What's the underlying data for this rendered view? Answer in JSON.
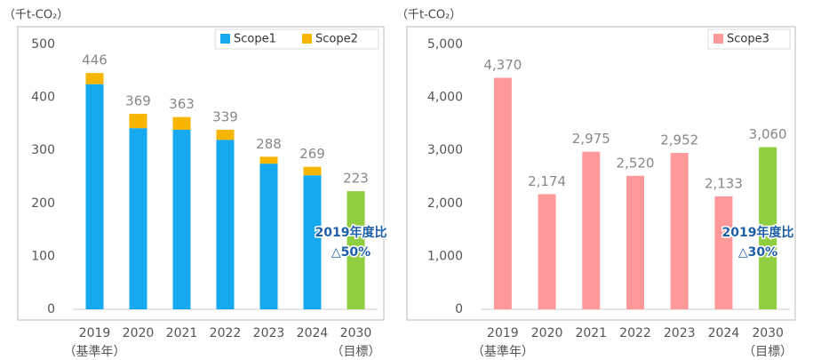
{
  "chart_data": [
    {
      "type": "bar",
      "stacked": true,
      "unit_label": "（千t-CO₂）",
      "categories": [
        "2019",
        "2020",
        "2021",
        "2022",
        "2023",
        "2024",
        "2030"
      ],
      "category_sublabels": [
        "（基準年）",
        null,
        null,
        null,
        null,
        null,
        "（目標）"
      ],
      "series": [
        {
          "name": "Scope1",
          "color": "#17a9ee",
          "values": [
            425,
            342,
            339,
            320,
            275,
            253,
            null
          ]
        },
        {
          "name": "Scope2",
          "color": "#f7b500",
          "values": [
            21,
            27,
            24,
            19,
            13,
            16,
            null
          ]
        }
      ],
      "totals": [
        446,
        369,
        363,
        339,
        288,
        269,
        null
      ],
      "target": {
        "color": "#8fce3e",
        "values": [
          null,
          null,
          null,
          null,
          null,
          null,
          223
        ]
      },
      "ylim": [
        0,
        500
      ],
      "yticks": [
        0,
        100,
        200,
        300,
        400,
        500
      ],
      "legend": "top-right",
      "annotations": [
        "2019年度比",
        "△50%"
      ]
    },
    {
      "type": "bar",
      "stacked": false,
      "unit_label": "（千t-CO₂）",
      "categories": [
        "2019",
        "2020",
        "2021",
        "2022",
        "2023",
        "2024",
        "2030"
      ],
      "category_sublabels": [
        "（基準年）",
        null,
        null,
        null,
        null,
        null,
        "（目標）"
      ],
      "series": [
        {
          "name": "Scope3",
          "color": "#ff9999",
          "values": [
            4370,
            2174,
            2975,
            2520,
            2952,
            2133,
            null
          ],
          "value_labels": [
            "4,370",
            "2,174",
            "2,975",
            "2,520",
            "2,952",
            "2,133",
            null
          ]
        }
      ],
      "target": {
        "color": "#8fce3e",
        "values": [
          null,
          null,
          null,
          null,
          null,
          null,
          3060
        ],
        "value_labels": [
          null,
          null,
          null,
          null,
          null,
          null,
          "3,060"
        ]
      },
      "ylim": [
        0,
        5000
      ],
      "yticks": [
        0,
        {
          "value": 1000,
          "label": "1,000"
        },
        {
          "value": 2000,
          "label": "2,000"
        },
        {
          "value": 3000,
          "label": "3,000"
        },
        {
          "value": 4000,
          "label": "4,000"
        },
        {
          "value": 5000,
          "label": "5,000"
        }
      ],
      "legend": "top-right",
      "annotations": [
        "2019年度比",
        "△30%"
      ]
    }
  ]
}
